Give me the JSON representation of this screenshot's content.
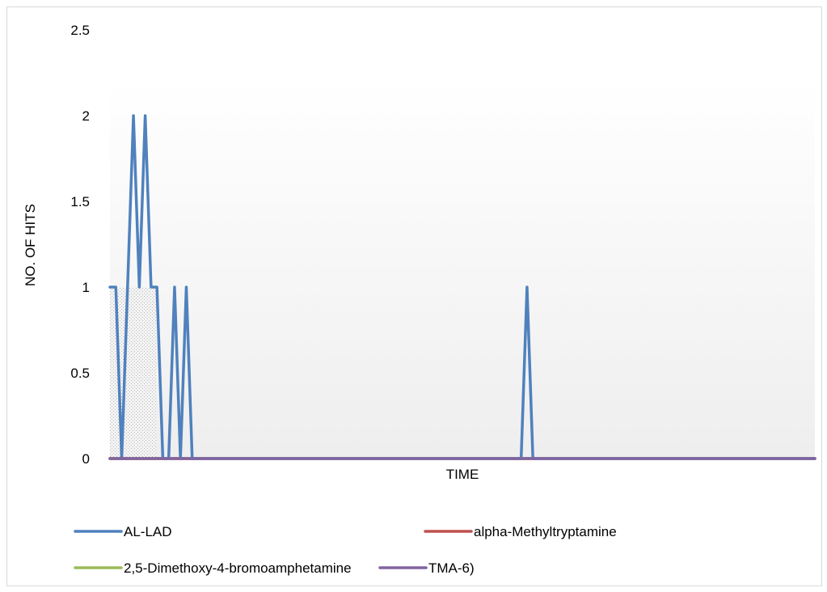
{
  "chart_data": {
    "type": "line",
    "title": "",
    "xlabel": "TIME",
    "ylabel": "NO. OF HITS",
    "ylim": [
      0,
      2.5
    ],
    "yticks": [
      {
        "value": 0,
        "label": "0"
      },
      {
        "value": 0.5,
        "label": "0.5"
      },
      {
        "value": 1,
        "label": "1"
      },
      {
        "value": 1.5,
        "label": "1.5"
      },
      {
        "value": 2,
        "label": "2"
      },
      {
        "value": 2.5,
        "label": "2.5"
      }
    ],
    "xlim": [
      0,
      120
    ],
    "legend_position": "bottom",
    "grid": false,
    "series": [
      {
        "name": "AL-LAD",
        "color": "#4f81bd",
        "x": [
          0,
          1,
          2,
          3,
          4,
          5,
          6,
          7,
          8,
          9,
          10,
          11,
          12,
          13,
          14,
          15,
          16,
          70,
          71,
          72,
          120
        ],
        "y": [
          1,
          1,
          0,
          1,
          2,
          1,
          2,
          1,
          1,
          0,
          0,
          1,
          0,
          1,
          0,
          0,
          0,
          0,
          1,
          0,
          0
        ]
      },
      {
        "name": "alpha-Methyltryptamine",
        "color": "#c0504d",
        "x": [
          0,
          120
        ],
        "y": [
          0,
          0
        ]
      },
      {
        "name": "2,5-Dimethoxy-4-bromoamphetamine",
        "color": "#9bbb59",
        "x": [
          0,
          120
        ],
        "y": [
          0,
          0
        ]
      },
      {
        "name": "TMA-6)",
        "color": "#8064a2",
        "x": [
          0,
          120
        ],
        "y": [
          0,
          0
        ]
      }
    ]
  }
}
